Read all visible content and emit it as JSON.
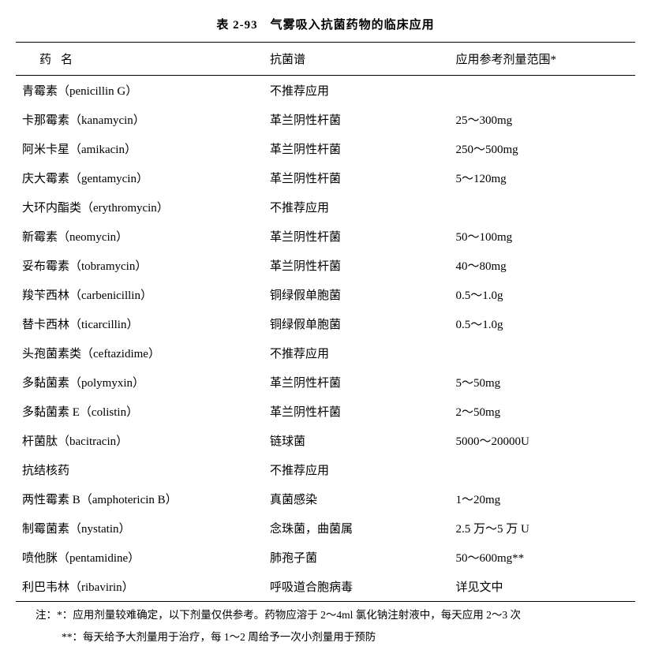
{
  "title": "表 2-93　气雾吸入抗菌药物的临床应用",
  "columns": {
    "c1": "药名",
    "c2": "抗菌谱",
    "c3": "应用参考剂量范围*"
  },
  "rows": [
    {
      "c1": "青霉素（penicillin G）",
      "c2": "不推荐应用",
      "c3": ""
    },
    {
      "c1": "卡那霉素（kanamycin）",
      "c2": "革兰阴性杆菌",
      "c3": "25～300mg"
    },
    {
      "c1": "阿米卡星（amikacin）",
      "c2": "革兰阴性杆菌",
      "c3": "250～500mg"
    },
    {
      "c1": "庆大霉素（gentamycin）",
      "c2": "革兰阴性杆菌",
      "c3": "5～120mg"
    },
    {
      "c1": "大环内酯类（erythromycin）",
      "c2": "不推荐应用",
      "c3": ""
    },
    {
      "c1": "新霉素（neomycin）",
      "c2": "革兰阴性杆菌",
      "c3": "50～100mg"
    },
    {
      "c1": "妥布霉素（tobramycin）",
      "c2": "革兰阴性杆菌",
      "c3": "40～80mg"
    },
    {
      "c1": "羧苄西林（carbenicillin）",
      "c2": "铜绿假单胞菌",
      "c3": "0.5～1.0g"
    },
    {
      "c1": "替卡西林（ticarcillin）",
      "c2": "铜绿假单胞菌",
      "c3": "0.5～1.0g"
    },
    {
      "c1": "头孢菌素类（ceftazidime）",
      "c2": "不推荐应用",
      "c3": ""
    },
    {
      "c1": "多黏菌素（polymyxin）",
      "c2": "革兰阴性杆菌",
      "c3": "5～50mg"
    },
    {
      "c1": "多黏菌素 E（colistin）",
      "c2": "革兰阴性杆菌",
      "c3": "2～50mg"
    },
    {
      "c1": "杆菌肽（bacitracin）",
      "c2": "链球菌",
      "c3": "5000～20000U"
    },
    {
      "c1": "抗结核药",
      "c2": "不推荐应用",
      "c3": ""
    },
    {
      "c1": "两性霉素 B（amphotericin B）",
      "c2": "真菌感染",
      "c3": "1～20mg"
    },
    {
      "c1": "制霉菌素（nystatin）",
      "c2": "念珠菌，曲菌属",
      "c3": "2.5 万～5 万 U"
    },
    {
      "c1": "喷他脒（pentamidine）",
      "c2": "肺孢子菌",
      "c3": "50～600mg**"
    },
    {
      "c1": "利巴韦林（ribavirin）",
      "c2": "呼吸道合胞病毒",
      "c3": "详见文中"
    }
  ],
  "footnote1": "注：*：应用剂量较难确定，以下剂量仅供参考。药物应溶于 2～4ml 氯化钠注射液中，每天应用 2～3 次",
  "footnote2": "**：每天给予大剂量用于治疗，每 1～2 周给予一次小剂量用于预防",
  "style": {
    "type": "table",
    "background_color": "#ffffff",
    "border_color": "#000000",
    "text_color": "#000000",
    "title_fontsize": 15,
    "body_fontsize": 15,
    "footnote_fontsize": 13.5,
    "col_widths_pct": [
      40,
      30,
      30
    ],
    "top_border_weight": 1.5,
    "header_bottom_border_weight": 1,
    "bottom_border_weight": 1.5
  }
}
